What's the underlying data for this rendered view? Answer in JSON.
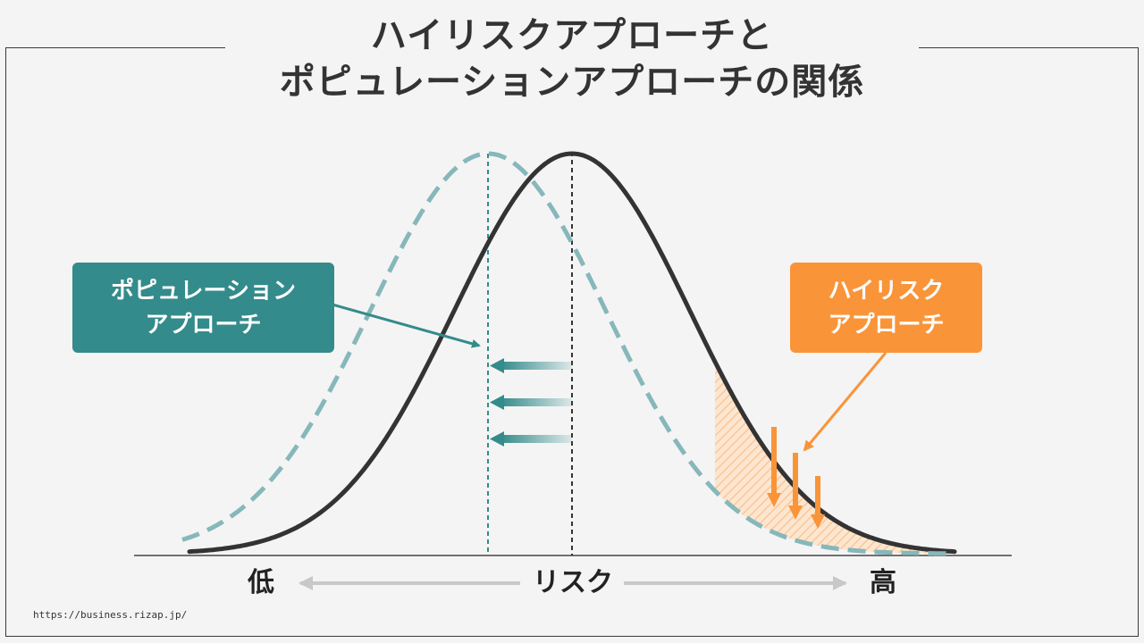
{
  "title": {
    "line1": "ハイリスクアプローチと",
    "line2": "ポピュレーションアプローチの関係"
  },
  "callouts": {
    "population": {
      "line1": "ポピュレーション",
      "line2": "アプローチ"
    },
    "high_risk": {
      "line1": "ハイリスク",
      "line2": "アプローチ"
    }
  },
  "axis": {
    "low": "低",
    "center": "リスク",
    "high": "高"
  },
  "source": "https://business.rizap.jp/",
  "colors": {
    "original_curve": "#333333",
    "shifted_curve": "#86b7bb",
    "population_teal": "#348b8b",
    "high_risk_orange": "#fa9439",
    "arrow_gray": "#c8c8c8"
  }
}
